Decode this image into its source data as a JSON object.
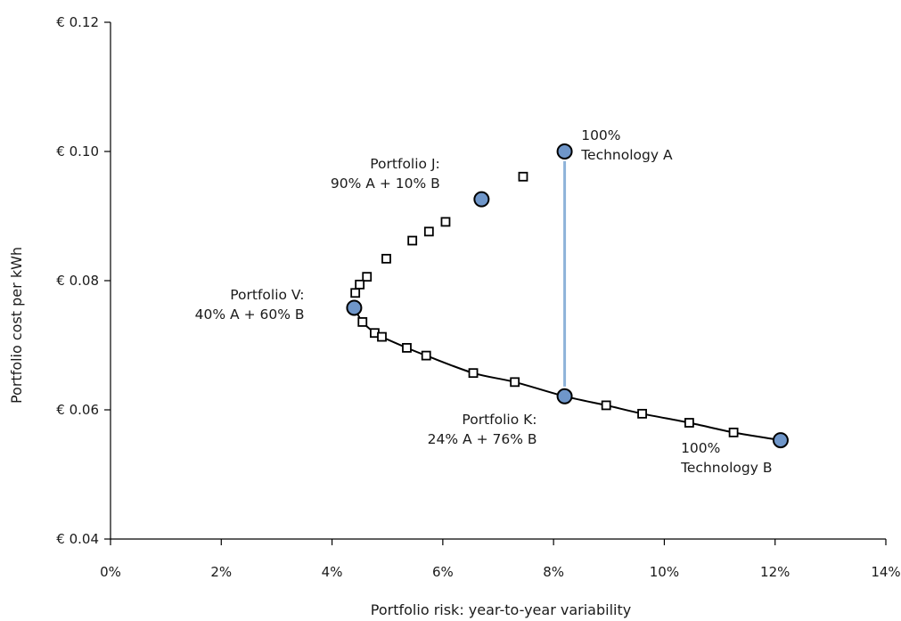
{
  "chart_data": {
    "type": "scatter",
    "title": "",
    "xlabel": "Portfolio risk: year-to-year variability",
    "ylabel": "Portfolio cost per kWh",
    "xlim": [
      0,
      14
    ],
    "ylim": [
      0.04,
      0.12
    ],
    "grid": false,
    "x_ticks": [
      0,
      2,
      4,
      6,
      8,
      10,
      12,
      14
    ],
    "x_tick_labels": [
      "0%",
      "2%",
      "4%",
      "6%",
      "8%",
      "10%",
      "12%",
      "14%"
    ],
    "y_ticks": [
      0.04,
      0.06,
      0.08,
      0.1,
      0.12
    ],
    "y_tick_labels": [
      "€ 0.04",
      "€ 0.06",
      "€ 0.08",
      "€ 0.10",
      "€ 0.12"
    ],
    "colors": {
      "highlight_fill": "#6f96c9",
      "line": "#000000",
      "connector": "#8eb3d9"
    },
    "series": [
      {
        "marker": "open-square",
        "points": [
          {
            "x": 7.45,
            "y": 0.0961
          },
          {
            "x": 6.05,
            "y": 0.0891
          },
          {
            "x": 5.75,
            "y": 0.0876
          },
          {
            "x": 5.45,
            "y": 0.0862
          },
          {
            "x": 4.98,
            "y": 0.0834
          },
          {
            "x": 4.63,
            "y": 0.0806
          },
          {
            "x": 4.5,
            "y": 0.0794
          },
          {
            "x": 4.42,
            "y": 0.0781
          },
          {
            "x": 4.55,
            "y": 0.0736
          },
          {
            "x": 4.77,
            "y": 0.0719
          },
          {
            "x": 4.9,
            "y": 0.0713
          },
          {
            "x": 5.35,
            "y": 0.0696
          },
          {
            "x": 5.7,
            "y": 0.0684
          },
          {
            "x": 6.55,
            "y": 0.0657
          },
          {
            "x": 7.3,
            "y": 0.0643
          },
          {
            "x": 8.95,
            "y": 0.0607
          },
          {
            "x": 9.6,
            "y": 0.0594
          },
          {
            "x": 10.45,
            "y": 0.058
          },
          {
            "x": 11.25,
            "y": 0.0565
          }
        ]
      },
      {
        "marker": "filled-circle",
        "points": [
          {
            "x": 8.2,
            "y": 0.1
          },
          {
            "x": 6.7,
            "y": 0.0926
          },
          {
            "x": 4.4,
            "y": 0.0758
          },
          {
            "x": 8.2,
            "y": 0.0621
          },
          {
            "x": 12.1,
            "y": 0.0553
          }
        ]
      }
    ],
    "frontier_curve": [
      {
        "x": 4.4,
        "y": 0.0758
      },
      {
        "x": 4.55,
        "y": 0.0736
      },
      {
        "x": 4.77,
        "y": 0.0719
      },
      {
        "x": 4.9,
        "y": 0.0713
      },
      {
        "x": 5.35,
        "y": 0.0696
      },
      {
        "x": 5.7,
        "y": 0.0684
      },
      {
        "x": 6.55,
        "y": 0.0657
      },
      {
        "x": 7.3,
        "y": 0.0643
      },
      {
        "x": 8.2,
        "y": 0.0621
      },
      {
        "x": 8.95,
        "y": 0.0607
      },
      {
        "x": 9.6,
        "y": 0.0594
      },
      {
        "x": 10.45,
        "y": 0.058
      },
      {
        "x": 11.25,
        "y": 0.0565
      },
      {
        "x": 12.1,
        "y": 0.0553
      }
    ],
    "connector": [
      {
        "x": 8.2,
        "y": 0.0985
      },
      {
        "x": 8.2,
        "y": 0.0636
      }
    ],
    "annotations": [
      {
        "lines": [
          "100%",
          "Technology A"
        ],
        "anchor": "start",
        "x": 8.5,
        "y": 0.1018
      },
      {
        "lines": [
          "Portfolio J:",
          "90% A + 10% B"
        ],
        "anchor": "end",
        "x": 5.95,
        "y": 0.0974
      },
      {
        "lines": [
          "Portfolio V:",
          "40% A + 60% B"
        ],
        "anchor": "end",
        "x": 3.5,
        "y": 0.0771
      },
      {
        "lines": [
          "Portfolio K:",
          "24% A + 76% B"
        ],
        "anchor": "end",
        "x": 7.7,
        "y": 0.0578
      },
      {
        "lines": [
          "100%",
          "Technology B"
        ],
        "anchor": "start",
        "x": 10.3,
        "y": 0.0534
      }
    ]
  }
}
